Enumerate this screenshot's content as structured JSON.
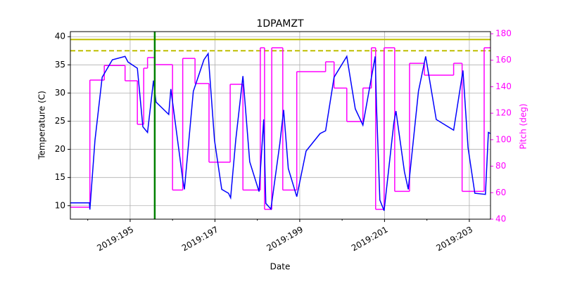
{
  "chart_data": {
    "type": "line",
    "title": "1DPAMZT",
    "x_label": "Date",
    "y_label": "Temperature (C)",
    "y2_label": "Pitch (deg)",
    "xlim": [
      193.59,
      203.5
    ],
    "ylim": [
      7.6,
      40.9
    ],
    "y2lim": [
      40,
      181.6
    ],
    "xticks": [
      {
        "value": 195,
        "label": "2019:195"
      },
      {
        "value": 197,
        "label": "2019:197"
      },
      {
        "value": 199,
        "label": "2019:199"
      },
      {
        "value": 201,
        "label": "2019:201"
      },
      {
        "value": 203,
        "label": "2019:203"
      }
    ],
    "xminorticks": [
      194,
      196,
      198,
      200,
      202
    ],
    "yticks": [
      10,
      15,
      20,
      25,
      30,
      35,
      40
    ],
    "y2ticks": [
      40,
      60,
      80,
      100,
      120,
      140,
      160,
      180
    ],
    "y2color": "#ff00ff",
    "grid": true,
    "series": [
      {
        "name": "1DPAMZT",
        "color": "#0000ff",
        "axis": "y",
        "x": [
          193.59,
          194.04,
          194.05,
          194.17,
          194.34,
          194.58,
          194.88,
          194.95,
          195.17,
          195.3,
          195.41,
          195.55,
          195.61,
          195.91,
          195.96,
          196.24,
          196.28,
          196.49,
          196.74,
          196.84,
          196.99,
          197.16,
          197.32,
          197.37,
          197.49,
          197.66,
          197.82,
          198.04,
          198.15,
          198.2,
          198.32,
          198.53,
          198.62,
          198.73,
          198.93,
          199.15,
          199.48,
          199.61,
          199.81,
          200.11,
          200.31,
          200.49,
          200.78,
          200.81,
          200.89,
          200.99,
          201.22,
          201.27,
          201.47,
          201.56,
          201.8,
          201.97,
          202.22,
          202.63,
          202.85,
          202.97,
          203.13,
          203.38,
          203.45,
          203.5
        ],
        "values": [
          10.5,
          10.5,
          9.3,
          21.6,
          32.8,
          35.9,
          36.5,
          35.5,
          34.4,
          24,
          23,
          32.2,
          28.4,
          26.2,
          30.7,
          14.7,
          12.9,
          30.3,
          35.9,
          37,
          21.6,
          12.9,
          12.2,
          11.4,
          21.6,
          33,
          17.8,
          12.5,
          25.3,
          10.4,
          9.4,
          21,
          27,
          16.6,
          11.6,
          19.7,
          22.8,
          23.3,
          32.8,
          36.5,
          27.2,
          24.3,
          36.5,
          27.8,
          11,
          9.1,
          24.7,
          26.8,
          16,
          12.9,
          30.3,
          36.5,
          25.3,
          23.4,
          34,
          20.3,
          12.2,
          12,
          23,
          22.8
        ]
      },
      {
        "name": "Pitch",
        "color": "#ff00ff",
        "axis": "y2",
        "step": "post",
        "x": [
          193.59,
          194.05,
          194.39,
          194.88,
          195.17,
          195.32,
          195.41,
          195.58,
          196.0,
          196.24,
          196.53,
          196.86,
          197.36,
          197.66,
          198.07,
          198.17,
          198.34,
          198.6,
          198.93,
          199.61,
          199.81,
          200.11,
          200.49,
          200.69,
          200.79,
          200.99,
          201.24,
          201.59,
          201.94,
          202.63,
          202.83,
          203.35,
          203.5
        ],
        "values": [
          49,
          145,
          156,
          144.5,
          111.6,
          154,
          162,
          156.7,
          62,
          161.4,
          142.4,
          83,
          141.8,
          62,
          169.4,
          47.4,
          169.4,
          62,
          151.4,
          158.8,
          139,
          113.7,
          139,
          169.4,
          47.4,
          169.4,
          61,
          157.7,
          148.7,
          157.7,
          61,
          169.4,
          169.4
        ]
      }
    ],
    "hlines": [
      {
        "value": 39.5,
        "color": "#bfbf00",
        "style": "solid"
      },
      {
        "value": 37.5,
        "color": "#bfbf00",
        "style": "dashed"
      }
    ],
    "vlines": [
      {
        "value": 195.58,
        "color": "#008000",
        "style": "solid"
      }
    ]
  }
}
